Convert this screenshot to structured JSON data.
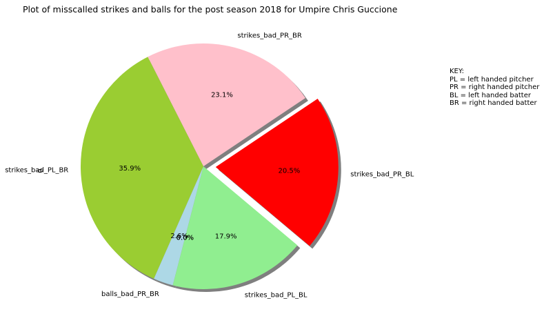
{
  "chart_data": {
    "type": "pie",
    "title": "Plot of misscalled strikes and balls for the post season 2018 for Umpire Chris Guccione",
    "ylabel": "0",
    "start_angle_deg": 320,
    "counterclock": true,
    "shadow": true,
    "slices": [
      {
        "label": "strikes_bad_PR_BL",
        "value": 20.5,
        "pct_label": "20.5%",
        "color": "#ff0000",
        "explode": 0.1
      },
      {
        "label": "strikes_bad_PR_BR",
        "value": 23.1,
        "pct_label": "23.1%",
        "color": "#ffc0cb",
        "explode": 0
      },
      {
        "label": "strikes_bad_PL_BR",
        "value": 35.9,
        "pct_label": "35.9%",
        "color": "#9acd32",
        "explode": 0
      },
      {
        "label": "balls_bad_PR_BR",
        "value": 2.6,
        "pct_label": "2.6%",
        "color": "#add8e6",
        "explode": 0
      },
      {
        "label": "",
        "value": 0.0,
        "pct_label": "0.0%",
        "color": "#87ceeb",
        "explode": 0
      },
      {
        "label": "",
        "value": 0.0,
        "pct_label": "0.0%",
        "color": "#87ceeb",
        "explode": 0
      },
      {
        "label": "strikes_bad_PL_BL",
        "value": 17.9,
        "pct_label": "17.9%",
        "color": "#90ee90",
        "explode": 0
      }
    ]
  },
  "key": {
    "lines": [
      "KEY:",
      "PL = left handed pitcher",
      "PR = right handed pitcher",
      "BL = left handed batter",
      "BR = right handed batter"
    ]
  }
}
